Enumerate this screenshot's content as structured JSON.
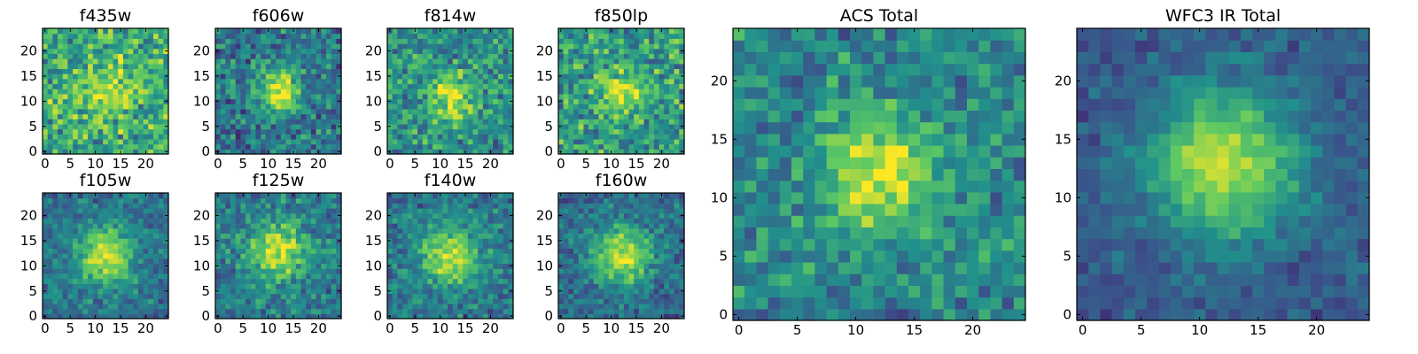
{
  "figure": {
    "description_type": "image-grid",
    "colormap": "viridis",
    "colormap_stops": [
      "#440154",
      "#3b528b",
      "#21918c",
      "#5ec962",
      "#fde725"
    ]
  },
  "chart_data": [
    {
      "type": "heatmap",
      "title": "f435w",
      "grid": [
        25,
        25
      ],
      "center": [
        12,
        12
      ],
      "signal": 0.25,
      "sigma": 3.5,
      "base": 0.62,
      "noise": 0.36,
      "seed": 11,
      "xticks": [
        0,
        5,
        10,
        15,
        20
      ],
      "yticks": [
        0,
        5,
        10,
        15,
        20
      ],
      "xlim": [
        -0.5,
        24.5
      ],
      "ylim": [
        -0.5,
        24.5
      ]
    },
    {
      "type": "heatmap",
      "title": "f606w",
      "grid": [
        25,
        25
      ],
      "center": [
        12,
        12
      ],
      "signal": 0.55,
      "sigma": 3.0,
      "base": 0.4,
      "noise": 0.3,
      "seed": 23,
      "xticks": [
        0,
        5,
        10,
        15,
        20
      ],
      "yticks": [
        0,
        5,
        10,
        15,
        20
      ],
      "xlim": [
        -0.5,
        24.5
      ],
      "ylim": [
        -0.5,
        24.5
      ]
    },
    {
      "type": "heatmap",
      "title": "f814w",
      "grid": [
        25,
        25
      ],
      "center": [
        12,
        11
      ],
      "signal": 0.45,
      "sigma": 3.2,
      "base": 0.5,
      "noise": 0.32,
      "seed": 37,
      "xticks": [
        0,
        5,
        10,
        15,
        20
      ],
      "yticks": [
        0,
        5,
        10,
        15,
        20
      ],
      "xlim": [
        -0.5,
        24.5
      ],
      "ylim": [
        -0.5,
        24.5
      ]
    },
    {
      "type": "heatmap",
      "title": "f850lp",
      "grid": [
        25,
        25
      ],
      "center": [
        12,
        12
      ],
      "signal": 0.35,
      "sigma": 3.0,
      "base": 0.55,
      "noise": 0.34,
      "seed": 41,
      "xticks": [
        0,
        5,
        10,
        15,
        20
      ],
      "yticks": [
        0,
        5,
        10,
        15,
        20
      ],
      "xlim": [
        -0.5,
        24.5
      ],
      "ylim": [
        -0.5,
        24.5
      ]
    },
    {
      "type": "heatmap",
      "title": "f105w",
      "grid": [
        25,
        25
      ],
      "center": [
        12,
        12
      ],
      "signal": 0.55,
      "sigma": 4.0,
      "base": 0.38,
      "noise": 0.22,
      "seed": 53,
      "xticks": [
        0,
        5,
        10,
        15,
        20
      ],
      "yticks": [
        0,
        5,
        10,
        15,
        20
      ],
      "xlim": [
        -0.5,
        24.5
      ],
      "ylim": [
        -0.5,
        24.5
      ]
    },
    {
      "type": "heatmap",
      "title": "f125w",
      "grid": [
        25,
        25
      ],
      "center": [
        12,
        13
      ],
      "signal": 0.5,
      "sigma": 4.0,
      "base": 0.42,
      "noise": 0.24,
      "seed": 67,
      "xticks": [
        0,
        5,
        10,
        15,
        20
      ],
      "yticks": [
        0,
        5,
        10,
        15,
        20
      ],
      "xlim": [
        -0.5,
        24.5
      ],
      "ylim": [
        -0.5,
        24.5
      ]
    },
    {
      "type": "heatmap",
      "title": "f140w",
      "grid": [
        25,
        25
      ],
      "center": [
        12,
        12
      ],
      "signal": 0.5,
      "sigma": 4.0,
      "base": 0.4,
      "noise": 0.24,
      "seed": 71,
      "xticks": [
        0,
        5,
        10,
        15,
        20
      ],
      "yticks": [
        0,
        5,
        10,
        15,
        20
      ],
      "xlim": [
        -0.5,
        24.5
      ],
      "ylim": [
        -0.5,
        24.5
      ]
    },
    {
      "type": "heatmap",
      "title": "f160w",
      "grid": [
        25,
        25
      ],
      "center": [
        12,
        12
      ],
      "signal": 0.55,
      "sigma": 4.2,
      "base": 0.35,
      "noise": 0.22,
      "seed": 83,
      "xticks": [
        0,
        5,
        10,
        15,
        20
      ],
      "yticks": [
        0,
        5,
        10,
        15,
        20
      ],
      "xlim": [
        -0.5,
        24.5
      ],
      "ylim": [
        -0.5,
        24.5
      ]
    },
    {
      "type": "heatmap",
      "title": "ACS Total",
      "grid": [
        25,
        25
      ],
      "center": [
        12,
        12
      ],
      "signal": 0.5,
      "sigma": 3.5,
      "base": 0.45,
      "noise": 0.26,
      "seed": 97,
      "xticks": [
        0,
        5,
        10,
        15,
        20
      ],
      "yticks": [
        0,
        5,
        10,
        15,
        20
      ],
      "xlim": [
        -0.5,
        24.5
      ],
      "ylim": [
        -0.5,
        24.5
      ]
    },
    {
      "type": "heatmap",
      "title": "WFC3 IR Total",
      "grid": [
        25,
        25
      ],
      "center": [
        12,
        13
      ],
      "signal": 0.62,
      "sigma": 4.5,
      "base": 0.28,
      "noise": 0.14,
      "seed": 109,
      "xticks": [
        0,
        5,
        10,
        15,
        20
      ],
      "yticks": [
        0,
        5,
        10,
        15,
        20
      ],
      "xlim": [
        -0.5,
        24.5
      ],
      "ylim": [
        -0.5,
        24.5
      ]
    }
  ]
}
